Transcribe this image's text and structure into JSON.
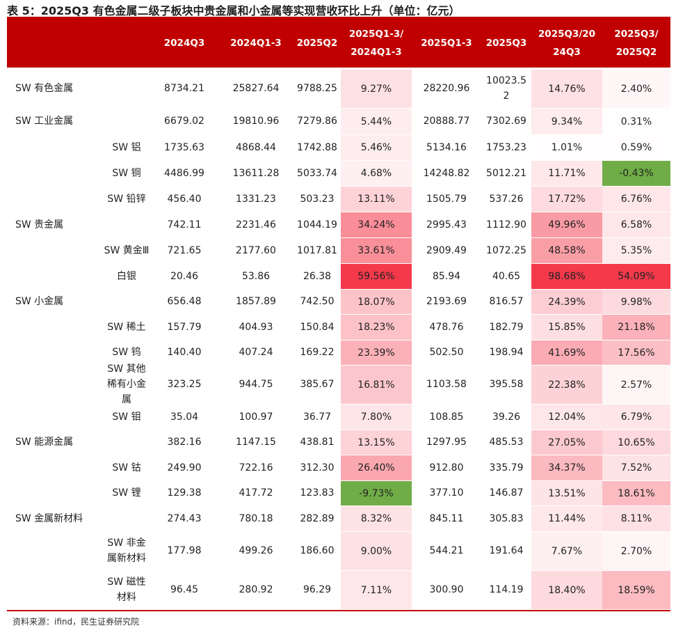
{
  "title": "表 5：2025Q3 有色金属二级子板块中贵金属和小金属等实现营收环比上升（单位：亿元）",
  "headers": [
    "",
    "",
    "2024Q3",
    "2024Q1-3",
    "2025Q2",
    "2025Q1-3/\n2024Q1-3",
    "2025Q1-3",
    "2025Q3",
    "2025Q3/20\n24Q3",
    "2025Q3/\n2025Q2"
  ],
  "rows": [
    {
      "l1": "SW 有色金属",
      "l2": "",
      "v": [
        "8734.21",
        "25827.64",
        "9788.25",
        "9.27%",
        "28220.96",
        "10023.52",
        "14.76%",
        "2.40%"
      ]
    },
    {
      "l1": "SW 工业金属",
      "l2": "",
      "v": [
        "6679.02",
        "19810.96",
        "7279.86",
        "5.44%",
        "20888.77",
        "7302.69",
        "9.34%",
        "0.31%"
      ]
    },
    {
      "l1": "",
      "l2": "SW 铝",
      "v": [
        "1735.63",
        "4868.44",
        "1742.88",
        "5.46%",
        "5134.16",
        "1753.23",
        "1.01%",
        "0.59%"
      ]
    },
    {
      "l1": "",
      "l2": "SW 铜",
      "v": [
        "4486.99",
        "13611.28",
        "5033.74",
        "4.68%",
        "14248.82",
        "5012.21",
        "11.71%",
        "-0.43%"
      ]
    },
    {
      "l1": "",
      "l2": "SW 铅锌",
      "v": [
        "456.40",
        "1331.23",
        "503.23",
        "13.11%",
        "1505.79",
        "537.26",
        "17.72%",
        "6.76%"
      ]
    },
    {
      "l1": "SW 贵金属",
      "l2": "",
      "v": [
        "742.11",
        "2231.46",
        "1044.19",
        "34.24%",
        "2995.43",
        "1112.90",
        "49.96%",
        "6.58%"
      ]
    },
    {
      "l1": "",
      "l2": "SW 黄金Ⅲ",
      "v": [
        "721.65",
        "2177.60",
        "1017.81",
        "33.61%",
        "2909.49",
        "1072.25",
        "48.58%",
        "5.35%"
      ]
    },
    {
      "l1": "",
      "l2": "白银",
      "v": [
        "20.46",
        "53.86",
        "26.38",
        "59.56%",
        "85.94",
        "40.65",
        "98.68%",
        "54.09%"
      ]
    },
    {
      "l1": "SW 小金属",
      "l2": "",
      "v": [
        "656.48",
        "1857.89",
        "742.50",
        "18.07%",
        "2193.69",
        "816.57",
        "24.39%",
        "9.98%"
      ]
    },
    {
      "l1": "",
      "l2": "SW 稀土",
      "v": [
        "157.79",
        "404.93",
        "150.84",
        "18.23%",
        "478.76",
        "182.79",
        "15.85%",
        "21.18%"
      ]
    },
    {
      "l1": "",
      "l2": "SW 钨",
      "v": [
        "140.40",
        "407.24",
        "169.22",
        "23.39%",
        "502.50",
        "198.94",
        "41.69%",
        "17.56%"
      ]
    },
    {
      "l1": "",
      "l2": "SW 其他稀有小金属",
      "v": [
        "323.25",
        "944.75",
        "385.67",
        "16.81%",
        "1103.58",
        "395.58",
        "22.38%",
        "2.57%"
      ]
    },
    {
      "l1": "",
      "l2": "SW 钼",
      "v": [
        "35.04",
        "100.97",
        "36.77",
        "7.80%",
        "108.85",
        "39.26",
        "12.04%",
        "6.79%"
      ]
    },
    {
      "l1": "SW 能源金属",
      "l2": "",
      "v": [
        "382.16",
        "1147.15",
        "438.81",
        "13.15%",
        "1297.95",
        "485.53",
        "27.05%",
        "10.65%"
      ]
    },
    {
      "l1": "",
      "l2": "SW 钴",
      "v": [
        "249.90",
        "722.16",
        "312.30",
        "26.40%",
        "912.80",
        "335.79",
        "34.37%",
        "7.52%"
      ]
    },
    {
      "l1": "",
      "l2": "SW 锂",
      "v": [
        "129.38",
        "417.72",
        "123.83",
        "-9.73%",
        "377.10",
        "146.87",
        "13.51%",
        "18.61%"
      ]
    },
    {
      "l1": "SW 金属新材料",
      "l2": "",
      "v": [
        "274.43",
        "780.18",
        "282.89",
        "8.32%",
        "845.11",
        "305.83",
        "11.44%",
        "8.11%"
      ]
    },
    {
      "l1": "",
      "l2": "SW 非金属新材料",
      "v": [
        "177.98",
        "499.26",
        "186.60",
        "9.00%",
        "544.21",
        "191.64",
        "7.67%",
        "2.70%"
      ]
    },
    {
      "l1": "",
      "l2": "SW 磁性材料",
      "v": [
        "96.45",
        "280.92",
        "96.29",
        "7.11%",
        "300.90",
        "114.19",
        "18.40%",
        "18.59%"
      ]
    }
  ],
  "colors": {
    "header_bg": "#c00000",
    "header_text": "#ffffff",
    "heat_max": "#f4394b",
    "heat_negative": "#70ad47"
  },
  "source": "资料来源：ifind，民生证券研究院"
}
